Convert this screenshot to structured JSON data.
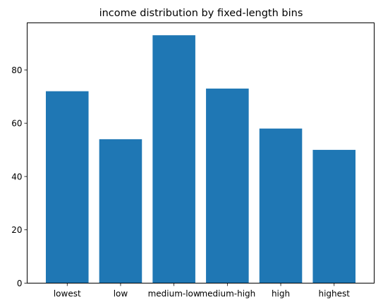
{
  "chart_data": {
    "type": "bar",
    "title": "income distribution by fixed-length bins",
    "xlabel": "",
    "ylabel": "",
    "categories": [
      "lowest",
      "low",
      "medium-low",
      "medium-high",
      "high",
      "highest"
    ],
    "values": [
      72,
      54,
      93,
      73,
      58,
      50
    ],
    "ylim": [
      0,
      97.65
    ],
    "yticks": [
      0,
      20,
      40,
      60,
      80
    ],
    "grid": false,
    "bar_color": "#1f77b4"
  }
}
